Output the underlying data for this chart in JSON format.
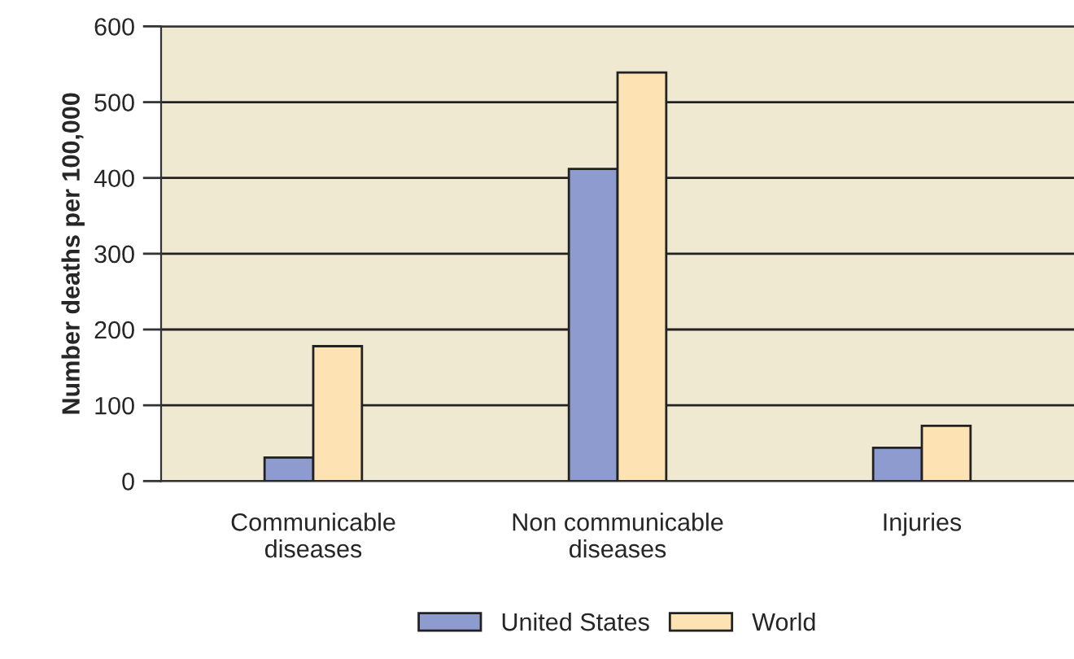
{
  "chart_data": {
    "type": "bar",
    "ylabel": "Number deaths per 100,000",
    "categories": [
      "Communicable\ndiseases",
      "Non communicable\ndiseases",
      "Injuries"
    ],
    "series": [
      {
        "name": "United States",
        "color": "#8e9bcf",
        "values": [
          31,
          412,
          44
        ]
      },
      {
        "name": "World",
        "color": "#fde2b4",
        "values": [
          178,
          539,
          73
        ]
      }
    ],
    "ylim": [
      0,
      600
    ],
    "yticks": [
      0,
      100,
      200,
      300,
      400,
      500,
      600
    ],
    "grid": "y",
    "legend": "bottom"
  }
}
